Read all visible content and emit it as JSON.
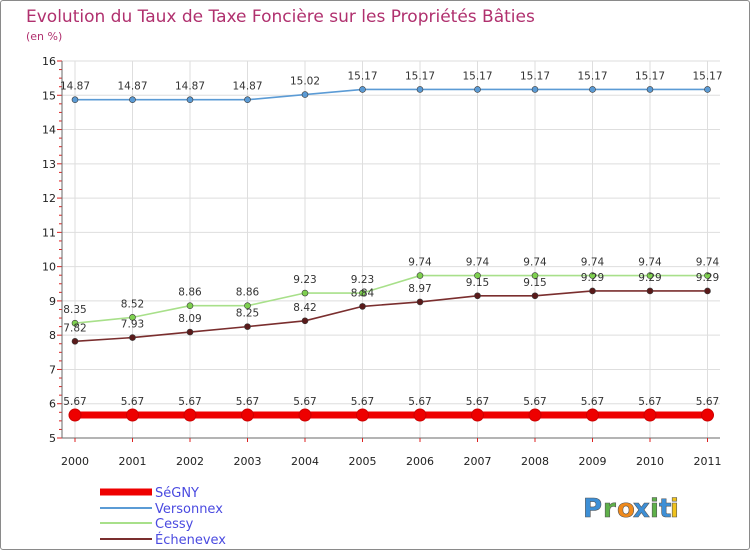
{
  "chart_data": {
    "type": "line",
    "title": "Evolution du Taux de Taxe Foncière sur les Propriétés Bâties",
    "unit_label": "(en %)",
    "x": [
      "2000",
      "2001",
      "2002",
      "2003",
      "2004",
      "2005",
      "2006",
      "2007",
      "2008",
      "2009",
      "2010",
      "2011"
    ],
    "ylim": [
      5,
      16
    ],
    "yticks": [
      "5",
      "6",
      "7",
      "8",
      "9",
      "10",
      "11",
      "12",
      "13",
      "14",
      "15",
      "16"
    ],
    "grid": true,
    "legend_position": "bottom-left",
    "series": [
      {
        "name": "Versonnex",
        "color": "#5b9bd5",
        "values": [
          14.87,
          14.87,
          14.87,
          14.87,
          15.02,
          15.17,
          15.17,
          15.17,
          15.17,
          15.17,
          15.17,
          15.17
        ],
        "labels": [
          "14.87",
          "14.87",
          "14.87",
          "14.87",
          "15.02",
          "15.17",
          "15.17",
          "15.17",
          "15.17",
          "15.17",
          "15.17",
          "15.17"
        ]
      },
      {
        "name": "Cessy",
        "color": "#a8e08a",
        "marker": "#7ed04f",
        "values": [
          8.35,
          8.52,
          8.86,
          8.86,
          9.23,
          9.23,
          9.74,
          9.74,
          9.74,
          9.74,
          9.74,
          9.74
        ],
        "labels": [
          "8.35",
          "8.52",
          "8.86",
          "8.86",
          "9.23",
          "9.23",
          "9.74",
          "9.74",
          "9.74",
          "9.74",
          "9.74",
          "9.74"
        ]
      },
      {
        "name": "Échenevex",
        "color": "#7a2e2e",
        "marker": "#5a1a1a",
        "values": [
          7.82,
          7.93,
          8.09,
          8.25,
          8.42,
          8.84,
          8.97,
          9.15,
          9.15,
          9.29,
          9.29,
          9.29
        ],
        "labels": [
          "7.82",
          "7.93",
          "8.09",
          "8.25",
          "8.42",
          "8.84",
          "8.97",
          "9.15",
          "9.15",
          "9.29",
          "9.29",
          "9.29"
        ]
      },
      {
        "name": "SéGNY",
        "color": "#ee0000",
        "values": [
          5.67,
          5.67,
          5.67,
          5.67,
          5.67,
          5.67,
          5.67,
          5.67,
          5.67,
          5.67,
          5.67,
          5.67
        ],
        "labels": [
          "5.67",
          "5.67",
          "5.67",
          "5.67",
          "5.67",
          "5.67",
          "5.67",
          "5.67",
          "5.67",
          "5.67",
          "5.67",
          "5.67"
        ]
      }
    ],
    "legend_order": [
      "SéGNY",
      "Versonnex",
      "Cessy",
      "Échenevex"
    ]
  },
  "brand": {
    "letters": [
      "P",
      "r",
      "o",
      "x",
      "i",
      "t",
      "i"
    ],
    "colors": [
      "#3d8fd6",
      "#5fb14a",
      "#f08a1c",
      "#3d8fd6",
      "#5fb14a",
      "#3d8fd6",
      "#f0c21c"
    ]
  }
}
